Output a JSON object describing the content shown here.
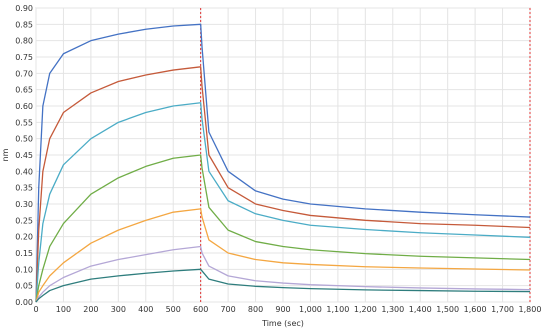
{
  "chart_data": {
    "type": "line",
    "xlabel": "Time (sec)",
    "ylabel": "nm",
    "xlim": [
      0,
      1800
    ],
    "ylim": [
      0,
      0.9
    ],
    "grid": true,
    "x_ticks": [
      0,
      100,
      200,
      300,
      400,
      500,
      600,
      700,
      800,
      900,
      1000,
      1100,
      1200,
      1300,
      1400,
      1500,
      1600,
      1700,
      1800
    ],
    "x_tick_labels": [
      "0",
      "100",
      "200",
      "300",
      "400",
      "500",
      "600",
      "700",
      "800",
      "900",
      "1,000",
      "1,100",
      "1,200",
      "1,300",
      "1,400",
      "1,500",
      "1,600",
      "1,700",
      "1,800"
    ],
    "y_ticks": [
      0,
      0.05,
      0.1,
      0.15,
      0.2,
      0.25,
      0.3,
      0.35,
      0.4,
      0.45,
      0.5,
      0.55,
      0.6,
      0.65,
      0.7,
      0.75,
      0.8,
      0.85,
      0.9
    ],
    "y_tick_labels": [
      "0.00",
      "0.05",
      "0.10",
      "0.15",
      "0.20",
      "0.25",
      "0.30",
      "0.35",
      "0.40",
      "0.45",
      "0.50",
      "0.55",
      "0.60",
      "0.65",
      "0.70",
      "0.75",
      "0.80",
      "0.85",
      "0.90"
    ],
    "reference_lines_x": [
      600,
      1800
    ],
    "reference_line_color": "#e03030",
    "series": [
      {
        "color": "#4472c4",
        "x": [
          0,
          10,
          25,
          50,
          100,
          200,
          300,
          400,
          500,
          600,
          605,
          630,
          700,
          800,
          900,
          1000,
          1200,
          1400,
          1600,
          1800
        ],
        "y": [
          0.0,
          0.35,
          0.6,
          0.7,
          0.76,
          0.8,
          0.82,
          0.835,
          0.845,
          0.85,
          0.78,
          0.52,
          0.4,
          0.34,
          0.315,
          0.3,
          0.285,
          0.275,
          0.267,
          0.26
        ]
      },
      {
        "color": "#c55a3a",
        "x": [
          0,
          10,
          25,
          50,
          100,
          200,
          300,
          400,
          500,
          600,
          605,
          630,
          700,
          800,
          900,
          1000,
          1200,
          1400,
          1600,
          1800
        ],
        "y": [
          0.0,
          0.22,
          0.4,
          0.5,
          0.58,
          0.64,
          0.675,
          0.695,
          0.71,
          0.72,
          0.66,
          0.45,
          0.35,
          0.3,
          0.28,
          0.265,
          0.25,
          0.24,
          0.235,
          0.228
        ]
      },
      {
        "color": "#4bacc6",
        "x": [
          0,
          10,
          25,
          50,
          100,
          200,
          300,
          400,
          500,
          600,
          605,
          630,
          700,
          800,
          900,
          1000,
          1200,
          1400,
          1600,
          1800
        ],
        "y": [
          0.0,
          0.12,
          0.24,
          0.33,
          0.42,
          0.5,
          0.55,
          0.58,
          0.6,
          0.61,
          0.56,
          0.4,
          0.31,
          0.27,
          0.25,
          0.235,
          0.222,
          0.212,
          0.205,
          0.198
        ]
      },
      {
        "color": "#70ad47",
        "x": [
          0,
          10,
          25,
          50,
          100,
          200,
          300,
          400,
          500,
          600,
          605,
          630,
          700,
          800,
          900,
          1000,
          1200,
          1400,
          1600,
          1800
        ],
        "y": [
          0.0,
          0.05,
          0.1,
          0.17,
          0.24,
          0.33,
          0.38,
          0.415,
          0.44,
          0.45,
          0.41,
          0.29,
          0.22,
          0.185,
          0.17,
          0.16,
          0.148,
          0.14,
          0.135,
          0.13
        ]
      },
      {
        "color": "#f4a742",
        "x": [
          0,
          10,
          25,
          50,
          100,
          200,
          300,
          400,
          500,
          600,
          605,
          630,
          700,
          800,
          900,
          1000,
          1200,
          1400,
          1600,
          1800
        ],
        "y": [
          0.0,
          0.03,
          0.05,
          0.08,
          0.12,
          0.18,
          0.22,
          0.25,
          0.275,
          0.285,
          0.26,
          0.19,
          0.15,
          0.13,
          0.12,
          0.115,
          0.108,
          0.104,
          0.101,
          0.098
        ]
      },
      {
        "color": "#b4a7d6",
        "x": [
          0,
          10,
          25,
          50,
          100,
          200,
          300,
          400,
          500,
          600,
          605,
          630,
          700,
          800,
          900,
          1000,
          1200,
          1400,
          1600,
          1800
        ],
        "y": [
          0.0,
          0.015,
          0.03,
          0.05,
          0.075,
          0.11,
          0.13,
          0.145,
          0.16,
          0.17,
          0.15,
          0.11,
          0.08,
          0.065,
          0.058,
          0.053,
          0.047,
          0.043,
          0.04,
          0.038
        ]
      },
      {
        "color": "#2e7d7d",
        "x": [
          0,
          10,
          25,
          50,
          100,
          200,
          300,
          400,
          500,
          600,
          605,
          630,
          700,
          800,
          900,
          1000,
          1200,
          1400,
          1600,
          1800
        ],
        "y": [
          0.0,
          0.01,
          0.02,
          0.035,
          0.05,
          0.07,
          0.08,
          0.088,
          0.095,
          0.1,
          0.095,
          0.07,
          0.055,
          0.048,
          0.044,
          0.041,
          0.037,
          0.035,
          0.033,
          0.032
        ]
      }
    ]
  }
}
